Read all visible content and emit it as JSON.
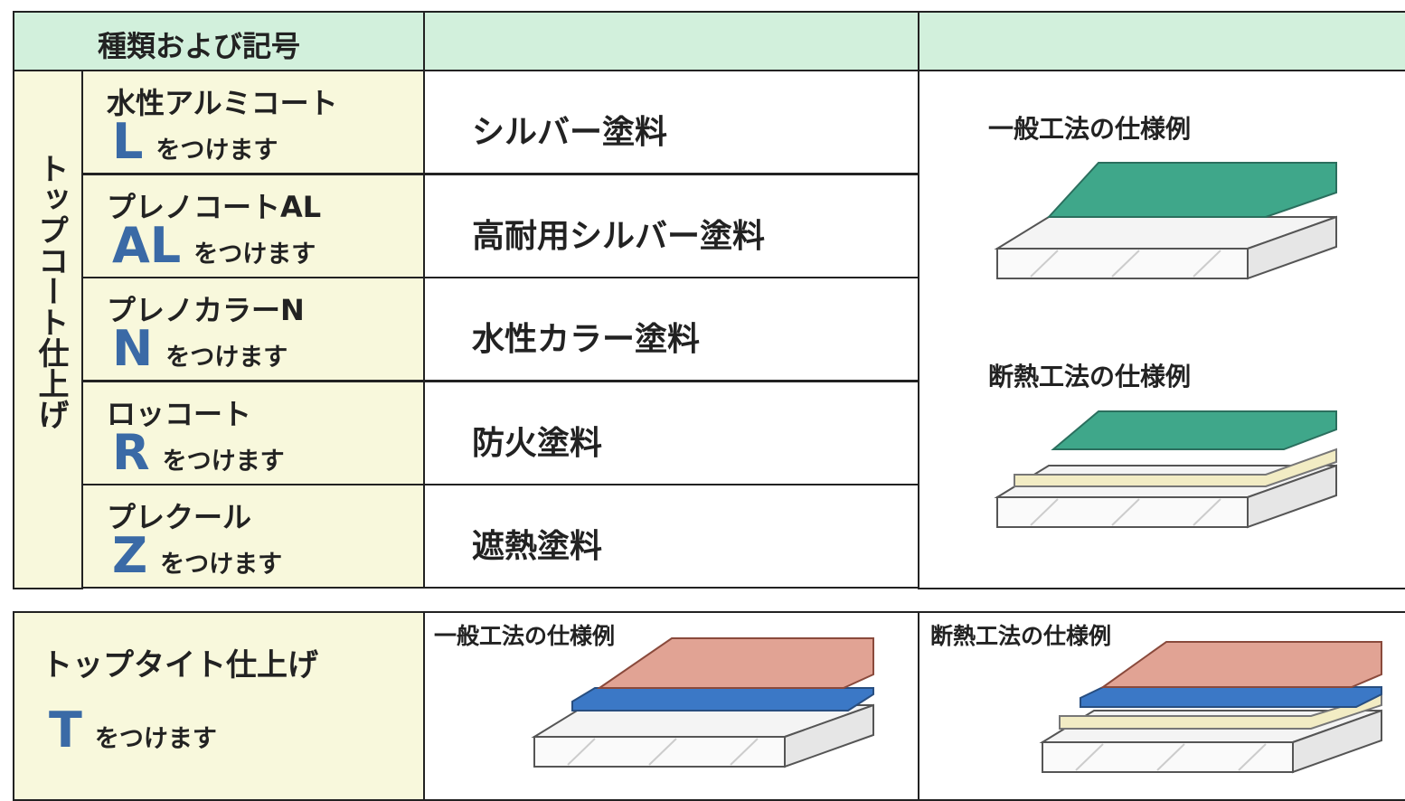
{
  "header": {
    "title": "種類および記号"
  },
  "top_coat": {
    "side_label": "トップコート仕上げ",
    "rows": [
      {
        "name": "水性アルミコート",
        "code": "L",
        "suffix": "をつけます",
        "description": "シルバー塗料"
      },
      {
        "name": "プレノコートAL",
        "code": "AL",
        "suffix": "をつけます",
        "description": "高耐用シルバー塗料"
      },
      {
        "name": "プレノカラーN",
        "code": "N",
        "suffix": "をつけます",
        "description": "水性カラー塗料"
      },
      {
        "name": "ロッコート",
        "code": "R",
        "suffix": "をつけます",
        "description": "防火塗料"
      },
      {
        "name": "プレクール",
        "code": "Z",
        "suffix": "をつけます",
        "description": "遮熱塗料"
      }
    ],
    "general_spec_label": "一般工法の仕様例",
    "insulation_spec_label": "断熱工法の仕様例"
  },
  "top_tight": {
    "name": "トップタイト仕上げ",
    "code": "T",
    "suffix": "をつけます",
    "general_spec_label": "一般工法の仕様例",
    "insulation_spec_label": "断熱工法の仕様例"
  }
}
